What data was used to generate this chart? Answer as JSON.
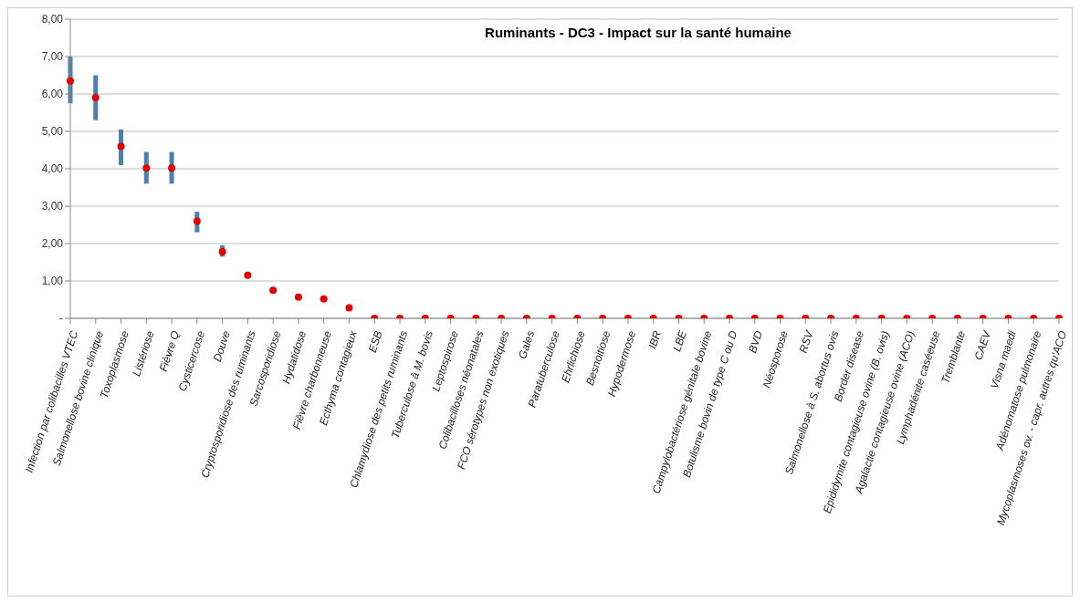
{
  "chart_data": {
    "type": "scatter",
    "title": "Ruminants - DC3 - Impact sur la santé humaine",
    "categories": [
      "Infection par colibacilles VTEC",
      "Salmonellose bovine clinique",
      "Toxoplasmose",
      "Listériose",
      "Fièvre Q",
      "Cysticercose",
      "Douve",
      "Cryptosporidiose des ruminants",
      "Sarcosporidiose",
      "Hydatidose",
      "Fièvre charbonneuse",
      "Ecthyma contagieux",
      "ESB",
      "Chlamydiose des petits ruminants",
      "Tuberculose à M. bovis",
      "Leptospirose",
      "Colibacilloses néonatales",
      "FCO sérotypes non exotiques",
      "Gales",
      "Paratuberculose",
      "Ehrlichiose",
      "Besnoitiose",
      "Hypodermose",
      "IBR",
      "LBE",
      "Campylobactériose génitale bovine",
      "Botulisme bovin de type C ou D",
      "BVD",
      "Néosporose",
      "RSV",
      "Salmonellose à S. abortus ovis",
      "Border disease",
      "Epididymite contagieuse ovine (B. ovis)",
      "Agalactie contagieuse ovine (ACO)",
      "Lymphadénite caséeuse",
      "Tremblante",
      "CAEV",
      "Visna maedi",
      "Adénomatose pulmonaire",
      "Mycoplasmoses ov. - capr. autres qu'ACO"
    ],
    "series": [
      {
        "color": "#e00000",
        "values": [
          6.35,
          5.9,
          4.6,
          4.02,
          4.02,
          2.6,
          1.78,
          1.15,
          0.75,
          0.57,
          0.52,
          0.28,
          0,
          0,
          0,
          0,
          0,
          0,
          0,
          0,
          0,
          0,
          0,
          0,
          0,
          0,
          0,
          0,
          0,
          0,
          0,
          0,
          0,
          0,
          0,
          0,
          0,
          0,
          0,
          0
        ],
        "errors": [
          [
            5.75,
            7.0
          ],
          [
            5.3,
            6.5
          ],
          [
            4.1,
            5.05
          ],
          [
            3.6,
            4.45
          ],
          [
            3.6,
            4.45
          ],
          [
            2.3,
            2.85
          ],
          [
            1.65,
            1.95
          ],
          null,
          null,
          null,
          null,
          null,
          null,
          null,
          null,
          null,
          null,
          null,
          null,
          null,
          null,
          null,
          null,
          null,
          null,
          null,
          null,
          null,
          null,
          null,
          null,
          null,
          null,
          null,
          null,
          null,
          null,
          null,
          null,
          null
        ]
      }
    ],
    "ylim": [
      0,
      8
    ],
    "yticks": [
      {
        "value": 0,
        "label": "-"
      },
      {
        "value": 1,
        "label": "1,00"
      },
      {
        "value": 2,
        "label": "2,00"
      },
      {
        "value": 3,
        "label": "3,00"
      },
      {
        "value": 4,
        "label": "4,00"
      },
      {
        "value": 5,
        "label": "5,00"
      },
      {
        "value": 6,
        "label": "6,00"
      },
      {
        "value": 7,
        "label": "7,00"
      },
      {
        "value": 8,
        "label": "8,00"
      }
    ],
    "grid": "y",
    "marker": "circle",
    "legend": false
  }
}
